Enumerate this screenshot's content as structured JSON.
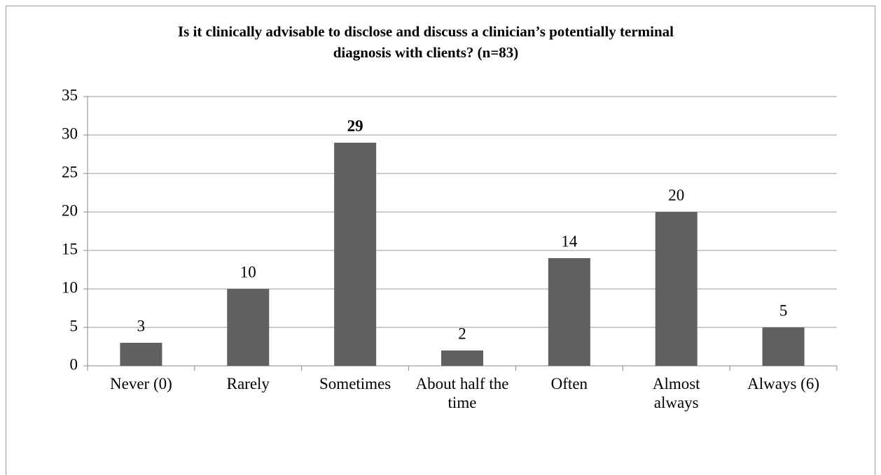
{
  "chart_data": {
    "type": "bar",
    "title": "Is it clinically advisable to disclose and discuss a clinician’s potentially terminal diagnosis with clients? (n=83)",
    "categories": [
      "Never (0)",
      "Rarely",
      "Sometimes",
      "About half the time",
      "Often",
      "Almost always",
      "Always (6)"
    ],
    "values": [
      3,
      10,
      29,
      2,
      14,
      20,
      5
    ],
    "color": "#606060",
    "ylim": [
      0,
      35
    ],
    "yticks": [
      0,
      5,
      10,
      15,
      20,
      25,
      30,
      35
    ],
    "grid": true
  }
}
